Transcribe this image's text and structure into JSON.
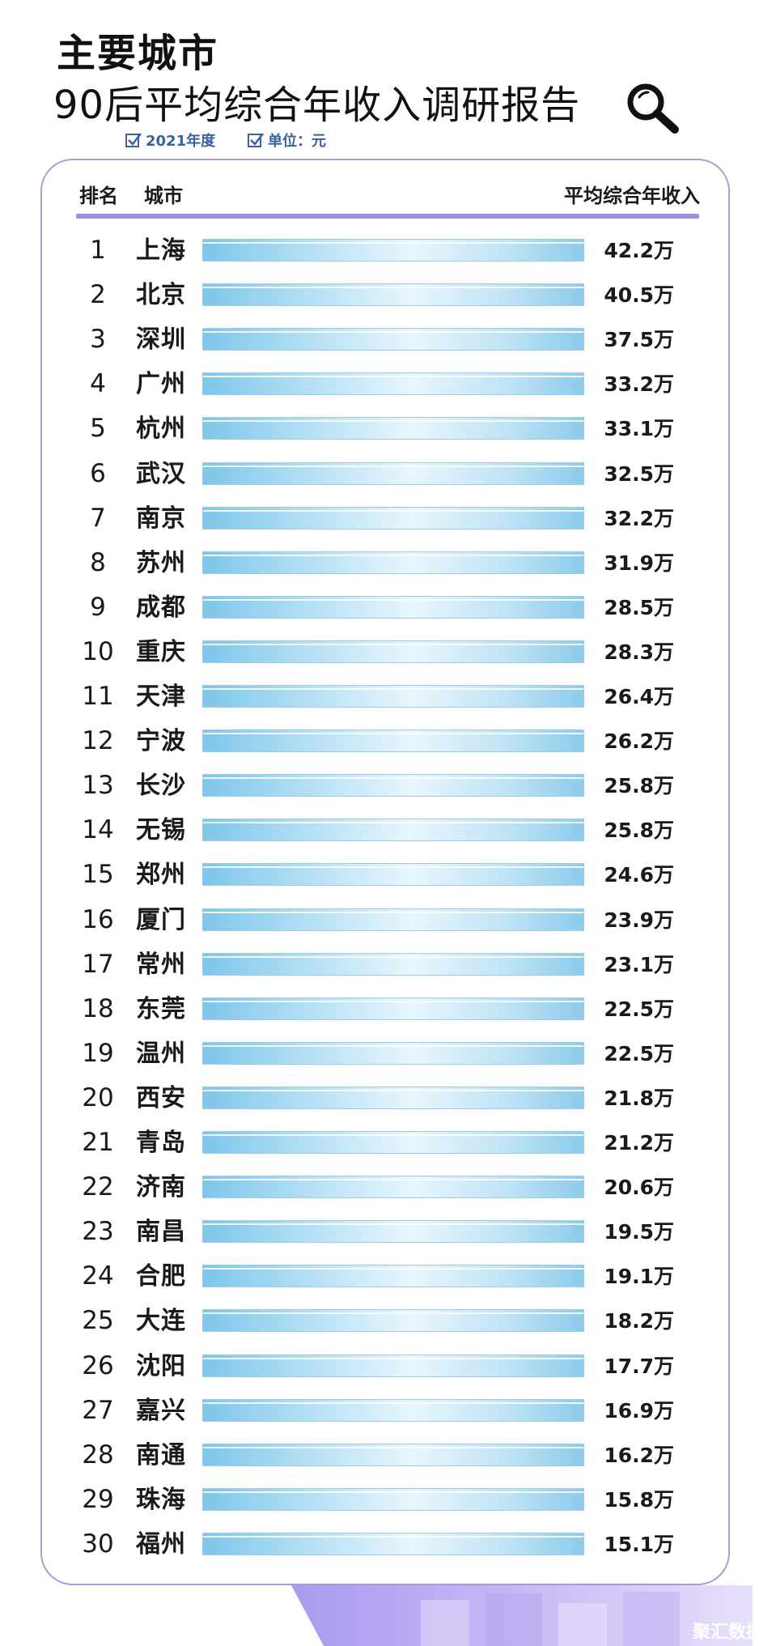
{
  "header": {
    "title_line1": "主要城市",
    "title_line2": "90后平均综合年收入调研报告",
    "meta_year": "2021年度",
    "meta_unit": "单位：元"
  },
  "table": {
    "head_rank": "排名",
    "head_city": "城市",
    "head_income": "平均综合年收入"
  },
  "chart_data": {
    "type": "bar",
    "title": "90后平均综合年收入调研报告",
    "unit_suffix": "万",
    "categories": [
      "上海",
      "北京",
      "深圳",
      "广州",
      "杭州",
      "武汉",
      "南京",
      "苏州",
      "成都",
      "重庆",
      "天津",
      "宁波",
      "长沙",
      "无锡",
      "郑州",
      "厦门",
      "常州",
      "东莞",
      "温州",
      "西安",
      "青岛",
      "济南",
      "南昌",
      "合肥",
      "大连",
      "沈阳",
      "嘉兴",
      "南通",
      "珠海",
      "福州"
    ],
    "ranks": [
      "1",
      "2",
      "3",
      "4",
      "5",
      "6",
      "7",
      "8",
      "9",
      "10",
      "11",
      "12",
      "13",
      "14",
      "15",
      "16",
      "17",
      "18",
      "19",
      "20",
      "21",
      "22",
      "23",
      "24",
      "25",
      "26",
      "27",
      "28",
      "29",
      "30"
    ],
    "values": [
      42.2,
      40.5,
      37.5,
      33.2,
      33.1,
      32.5,
      32.2,
      31.9,
      28.5,
      28.3,
      26.4,
      26.2,
      25.8,
      25.8,
      24.6,
      23.9,
      23.1,
      22.5,
      22.5,
      21.8,
      21.2,
      20.6,
      19.5,
      19.1,
      18.2,
      17.7,
      16.9,
      16.2,
      15.8,
      15.1
    ],
    "value_labels": [
      "42.2万",
      "40.5万",
      "37.5万",
      "33.2万",
      "33.1万",
      "32.5万",
      "32.2万",
      "31.9万",
      "28.5万",
      "28.3万",
      "26.4万",
      "26.2万",
      "25.8万",
      "25.8万",
      "24.6万",
      "23.9万",
      "23.1万",
      "22.5万",
      "22.5万",
      "21.8万",
      "21.2万",
      "20.6万",
      "19.5万",
      "19.1万",
      "18.2万",
      "17.7万",
      "16.9万",
      "16.2万",
      "15.8万",
      "15.1万"
    ],
    "orientation": "horizontal"
  },
  "footer": {
    "watermark": "聚汇数据"
  },
  "colors": {
    "accent_purple": "#9d8fe0",
    "bar_blue": "#7ec6ea",
    "meta_blue": "#3a62a0"
  }
}
